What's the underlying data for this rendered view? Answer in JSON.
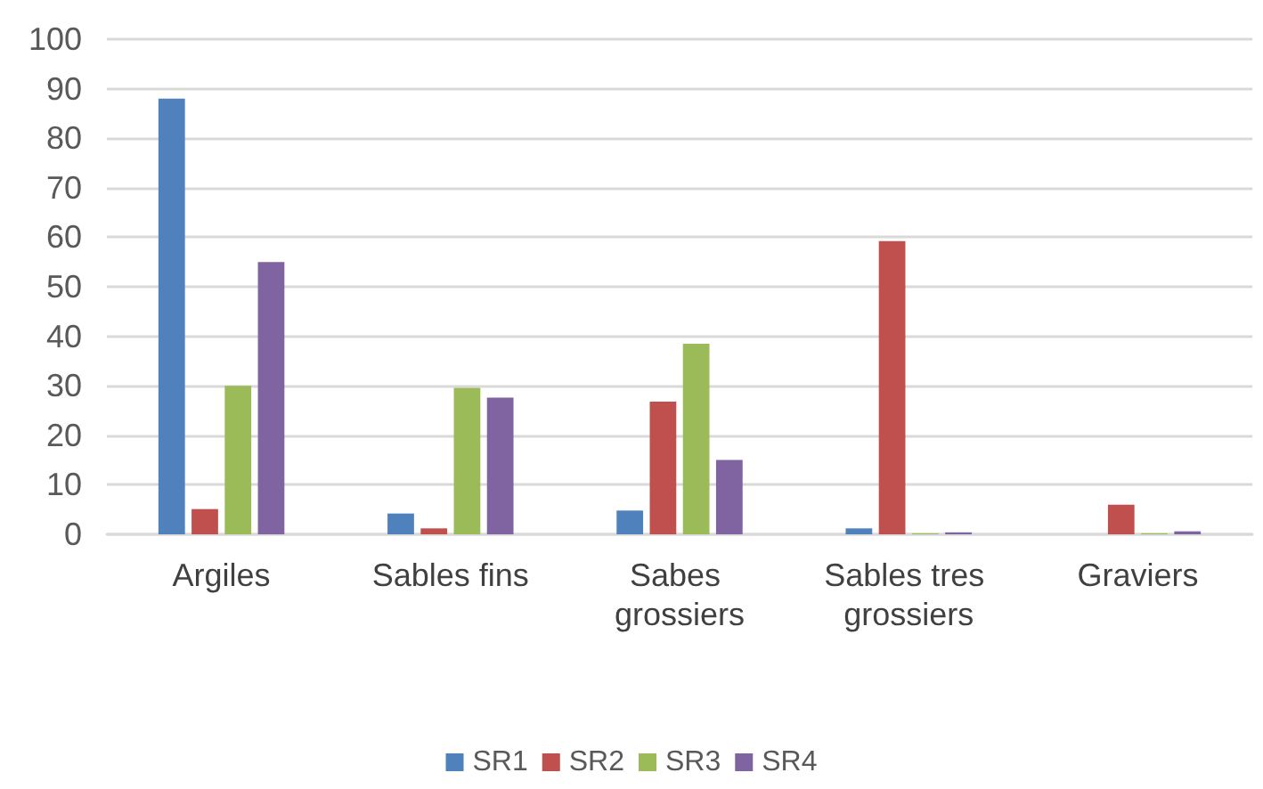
{
  "chart_data": {
    "type": "bar",
    "categories": [
      "Argiles",
      "Sables fins",
      "Sabes grossiers",
      "Sables tres grossiers",
      "Graviers"
    ],
    "series": [
      {
        "name": "SR1",
        "color": "#4f81bd",
        "values": [
          88,
          4.2,
          4.8,
          1.2,
          0
        ]
      },
      {
        "name": "SR2",
        "color": "#c0504d",
        "values": [
          5.1,
          1.2,
          26.8,
          59.2,
          6
        ]
      },
      {
        "name": "SR3",
        "color": "#9bbb59",
        "values": [
          30,
          29.6,
          38.5,
          0.2,
          0.2
        ]
      },
      {
        "name": "SR4",
        "color": "#8064a2",
        "values": [
          55,
          27.6,
          15,
          0.4,
          0.6
        ]
      }
    ],
    "ylim": [
      0,
      100
    ],
    "yticks": [
      0,
      10,
      20,
      30,
      40,
      50,
      60,
      70,
      80,
      90,
      100
    ],
    "grid": "y",
    "legend": "bottom"
  }
}
